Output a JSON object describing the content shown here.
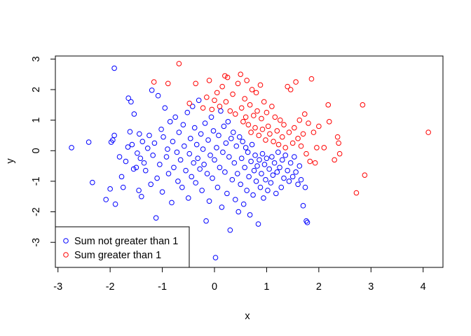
{
  "chart_data": {
    "type": "scatter",
    "title": "",
    "xlabel": "x",
    "ylabel": "y",
    "xlim": [
      -3.05,
      4.38
    ],
    "ylim": [
      -3.82,
      3.1
    ],
    "x_ticks": [
      -3,
      -2,
      -1,
      0,
      1,
      2,
      3,
      4
    ],
    "y_ticks": [
      -3,
      -2,
      -1,
      0,
      1,
      2,
      3
    ],
    "x_tick_labels": [
      "-3",
      "-2",
      "-1",
      "0",
      "1",
      "2",
      "3",
      "4"
    ],
    "y_tick_labels": [
      "-3",
      "-2",
      "-1",
      "0",
      "1",
      "2",
      "3"
    ],
    "grid": false,
    "legend_position": "bottom-left",
    "series": [
      {
        "name": "Sum not greater than 1",
        "color": "#0000FF",
        "marker": "open-circle",
        "points": [
          [
            -2.74,
            0.1
          ],
          [
            -2.41,
            0.28
          ],
          [
            -2.34,
            -1.04
          ],
          [
            -2.08,
            -1.6
          ],
          [
            -2.0,
            -1.25
          ],
          [
            -1.98,
            0.28
          ],
          [
            -1.95,
            0.35
          ],
          [
            -1.92,
            0.5
          ],
          [
            -1.92,
            2.7
          ],
          [
            -1.9,
            -1.75
          ],
          [
            -1.82,
            -0.2
          ],
          [
            -1.78,
            -0.85
          ],
          [
            -1.75,
            -1.2
          ],
          [
            -1.7,
            -0.35
          ],
          [
            -1.66,
            0.12
          ],
          [
            -1.65,
            1.72
          ],
          [
            -1.62,
            0.62
          ],
          [
            -1.6,
            1.6
          ],
          [
            -1.58,
            0.2
          ],
          [
            -1.55,
            -0.6
          ],
          [
            -1.54,
            1.2
          ],
          [
            -1.5,
            -0.55
          ],
          [
            -1.48,
            -0.08
          ],
          [
            -1.45,
            -1.3
          ],
          [
            -1.44,
            0.55
          ],
          [
            -1.42,
            -0.25
          ],
          [
            -1.4,
            -1.5
          ],
          [
            -1.38,
            0.3
          ],
          [
            -1.35,
            -0.4
          ],
          [
            -1.32,
            -0.65
          ],
          [
            -1.28,
            0.08
          ],
          [
            -1.25,
            0.5
          ],
          [
            -1.22,
            -1.1
          ],
          [
            -1.2,
            1.98
          ],
          [
            -1.18,
            -0.15
          ],
          [
            -1.15,
            0.25
          ],
          [
            -1.12,
            -2.2
          ],
          [
            -1.1,
            -0.9
          ],
          [
            -1.08,
            1.8
          ],
          [
            -1.05,
            -0.45
          ],
          [
            -1.02,
            0.7
          ],
          [
            -1.0,
            -1.35
          ],
          [
            -0.98,
            0.45
          ],
          [
            -0.95,
            1.4
          ],
          [
            -0.92,
            -0.2
          ],
          [
            -0.9,
            0.05
          ],
          [
            -0.88,
            -0.75
          ],
          [
            -0.85,
            0.95
          ],
          [
            -0.82,
            -1.7
          ],
          [
            -0.8,
            0.3
          ],
          [
            -0.78,
            -0.55
          ],
          [
            -0.75,
            1.1
          ],
          [
            -0.72,
            -0.05
          ],
          [
            -0.7,
            -1.0
          ],
          [
            -0.68,
            0.6
          ],
          [
            -0.65,
            -0.3
          ],
          [
            -0.62,
            -1.2
          ],
          [
            -0.6,
            0.85
          ],
          [
            -0.58,
            0.15
          ],
          [
            -0.55,
            -0.65
          ],
          [
            -0.52,
            1.25
          ],
          [
            -0.5,
            -1.55
          ],
          [
            -0.48,
            -0.1
          ],
          [
            -0.46,
            0.4
          ],
          [
            -0.44,
            -0.85
          ],
          [
            -0.42,
            1.45
          ],
          [
            -0.4,
            -0.4
          ],
          [
            -0.38,
            0.75
          ],
          [
            -0.36,
            -1.05
          ],
          [
            -0.34,
            0.2
          ],
          [
            -0.32,
            -0.25
          ],
          [
            -0.3,
            1.65
          ],
          [
            -0.28,
            -0.6
          ],
          [
            -0.26,
            0.55
          ],
          [
            -0.24,
            -1.3
          ],
          [
            -0.22,
            0.05
          ],
          [
            -0.2,
            -0.45
          ],
          [
            -0.18,
            0.9
          ],
          [
            -0.16,
            -2.3
          ],
          [
            -0.14,
            -0.75
          ],
          [
            -0.12,
            0.35
          ],
          [
            -0.1,
            -1.65
          ],
          [
            -0.08,
            -0.15
          ],
          [
            -0.06,
            1.1
          ],
          [
            -0.04,
            -0.9
          ],
          [
            -0.02,
            0.65
          ],
          [
            0.0,
            -0.3
          ],
          [
            0.02,
            -3.5
          ],
          [
            0.04,
            0.1
          ],
          [
            0.06,
            -1.2
          ],
          [
            0.08,
            0.5
          ],
          [
            0.1,
            -0.55
          ],
          [
            0.12,
            1.3
          ],
          [
            0.14,
            -1.85
          ],
          [
            0.16,
            -0.05
          ],
          [
            0.18,
            0.8
          ],
          [
            0.2,
            -0.7
          ],
          [
            0.22,
            0.25
          ],
          [
            0.24,
            -1.4
          ],
          [
            0.26,
            0.95
          ],
          [
            0.28,
            -0.2
          ],
          [
            0.3,
            -2.6
          ],
          [
            0.32,
            0.4
          ],
          [
            0.34,
            -0.95
          ],
          [
            0.36,
            0.6
          ],
          [
            0.38,
            -0.4
          ],
          [
            0.4,
            -1.6
          ],
          [
            0.42,
            0.15
          ],
          [
            0.44,
            -0.75
          ],
          [
            0.46,
            -2.0
          ],
          [
            0.48,
            0.45
          ],
          [
            0.5,
            -1.1
          ],
          [
            0.52,
            -0.25
          ],
          [
            0.54,
            0.3
          ],
          [
            0.56,
            -1.75
          ],
          [
            0.58,
            -0.55
          ],
          [
            0.6,
            0.1
          ],
          [
            0.62,
            -1.3
          ],
          [
            0.64,
            -0.05
          ],
          [
            0.66,
            -0.85
          ],
          [
            0.68,
            -2.1
          ],
          [
            0.7,
            -0.35
          ],
          [
            0.72,
            0.2
          ],
          [
            0.74,
            -1.45
          ],
          [
            0.76,
            -0.65
          ],
          [
            0.78,
            -0.15
          ],
          [
            0.8,
            -1.0
          ],
          [
            0.82,
            -0.5
          ],
          [
            0.84,
            -2.4
          ],
          [
            0.86,
            -0.3
          ],
          [
            0.88,
            -1.2
          ],
          [
            0.9,
            -0.75
          ],
          [
            0.92,
            -0.1
          ],
          [
            0.94,
            -1.55
          ],
          [
            0.96,
            -0.45
          ],
          [
            0.98,
            -0.95
          ],
          [
            1.0,
            -0.25
          ],
          [
            1.02,
            -1.3
          ],
          [
            1.05,
            -0.6
          ],
          [
            1.08,
            -1.05
          ],
          [
            1.1,
            -0.2
          ],
          [
            1.12,
            -0.8
          ],
          [
            1.15,
            -0.4
          ],
          [
            1.18,
            -1.4
          ],
          [
            1.2,
            -0.7
          ],
          [
            1.22,
            -0.05
          ],
          [
            1.25,
            -0.55
          ],
          [
            1.28,
            -1.2
          ],
          [
            1.3,
            -0.3
          ],
          [
            1.33,
            -0.9
          ],
          [
            1.36,
            -0.15
          ],
          [
            1.4,
            -0.65
          ],
          [
            1.43,
            -1.0
          ],
          [
            1.46,
            -0.4
          ],
          [
            1.5,
            -0.85
          ],
          [
            1.53,
            -0.2
          ],
          [
            1.56,
            -0.7
          ],
          [
            1.6,
            -1.1
          ],
          [
            1.63,
            -0.5
          ],
          [
            1.66,
            -0.95
          ],
          [
            1.7,
            -1.8
          ],
          [
            1.74,
            -1.2
          ],
          [
            1.76,
            -2.3
          ],
          [
            1.78,
            -2.35
          ]
        ]
      },
      {
        "name": "Sum greater than 1",
        "color": "#FF0000",
        "marker": "open-circle",
        "points": [
          [
            -1.16,
            2.25
          ],
          [
            -0.89,
            2.2
          ],
          [
            -0.68,
            2.85
          ],
          [
            -0.48,
            1.55
          ],
          [
            -0.36,
            2.2
          ],
          [
            -0.22,
            1.4
          ],
          [
            -0.15,
            1.75
          ],
          [
            -0.1,
            2.3
          ],
          [
            -0.05,
            1.35
          ],
          [
            0.0,
            1.65
          ],
          [
            0.05,
            1.9
          ],
          [
            0.1,
            1.45
          ],
          [
            0.15,
            2.1
          ],
          [
            0.2,
            2.45
          ],
          [
            0.22,
            1.6
          ],
          [
            0.25,
            2.4
          ],
          [
            0.3,
            1.3
          ],
          [
            0.35,
            1.85
          ],
          [
            0.4,
            1.2
          ],
          [
            0.45,
            2.2
          ],
          [
            0.5,
            2.5
          ],
          [
            0.52,
            1.4
          ],
          [
            0.55,
            0.95
          ],
          [
            0.58,
            1.7
          ],
          [
            0.6,
            1.1
          ],
          [
            0.62,
            2.3
          ],
          [
            0.65,
            0.85
          ],
          [
            0.68,
            1.5
          ],
          [
            0.7,
            0.6
          ],
          [
            0.72,
            2.0
          ],
          [
            0.75,
            1.15
          ],
          [
            0.78,
            0.75
          ],
          [
            0.8,
            1.9
          ],
          [
            0.82,
            1.3
          ],
          [
            0.85,
            0.5
          ],
          [
            0.88,
            2.15
          ],
          [
            0.9,
            1.05
          ],
          [
            0.92,
            0.7
          ],
          [
            0.95,
            1.6
          ],
          [
            0.98,
            0.35
          ],
          [
            1.0,
            1.25
          ],
          [
            1.03,
            0.8
          ],
          [
            1.06,
            0.55
          ],
          [
            1.1,
            1.45
          ],
          [
            1.13,
            0.3
          ],
          [
            1.16,
            1.1
          ],
          [
            1.2,
            0.65
          ],
          [
            1.23,
            0.2
          ],
          [
            1.26,
            1.0
          ],
          [
            1.3,
            0.45
          ],
          [
            1.33,
            0.85
          ],
          [
            1.36,
            0.1
          ],
          [
            1.4,
            2.1
          ],
          [
            1.43,
            0.6
          ],
          [
            1.46,
            2.0
          ],
          [
            1.5,
            0.25
          ],
          [
            1.53,
            0.75
          ],
          [
            1.56,
            2.25
          ],
          [
            1.6,
            0.4
          ],
          [
            1.63,
            1.0
          ],
          [
            1.66,
            0.15
          ],
          [
            1.7,
            0.55
          ],
          [
            1.73,
            1.2
          ],
          [
            1.76,
            -0.1
          ],
          [
            1.8,
            0.9
          ],
          [
            1.83,
            -0.35
          ],
          [
            1.86,
            2.35
          ],
          [
            1.9,
            0.6
          ],
          [
            1.93,
            -0.4
          ],
          [
            1.96,
            0.1
          ],
          [
            2.0,
            0.8
          ],
          [
            2.1,
            0.1
          ],
          [
            2.18,
            1.5
          ],
          [
            2.2,
            0.95
          ],
          [
            2.3,
            -0.3
          ],
          [
            2.36,
            0.45
          ],
          [
            2.38,
            0.25
          ],
          [
            2.4,
            -0.1
          ],
          [
            2.72,
            -1.38
          ],
          [
            2.84,
            1.5
          ],
          [
            2.88,
            -0.8
          ],
          [
            4.1,
            0.6
          ]
        ]
      }
    ]
  }
}
